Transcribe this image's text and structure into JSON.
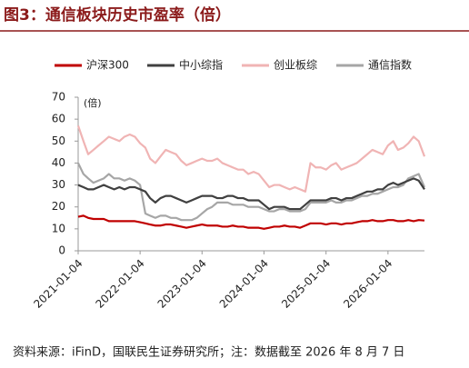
{
  "chart_data": {
    "type": "line",
    "title": "图3：通信板块历史市盈率（倍）",
    "ylabel": "(倍)",
    "source": "资料来源：iFinD，国联民生证券研究所；注：数据截至 2026 年 8 月 7 日",
    "x": [
      "2021-01-04",
      "2021-02-04",
      "2021-03-04",
      "2021-04-04",
      "2021-05-04",
      "2021-06-04",
      "2021-07-04",
      "2021-08-04",
      "2021-09-04",
      "2021-10-04",
      "2021-11-04",
      "2021-12-04",
      "2022-01-04",
      "2022-02-04",
      "2022-03-04",
      "2022-04-04",
      "2022-05-04",
      "2022-06-04",
      "2022-07-04",
      "2022-08-04",
      "2022-09-04",
      "2022-10-04",
      "2022-11-04",
      "2022-12-04",
      "2023-01-04",
      "2023-02-04",
      "2023-03-04",
      "2023-04-04",
      "2023-05-04",
      "2023-06-04",
      "2023-07-04",
      "2023-08-04",
      "2023-09-04",
      "2023-10-04",
      "2023-11-04",
      "2023-12-04",
      "2024-01-04",
      "2024-02-04",
      "2024-03-04",
      "2024-04-04",
      "2024-05-04",
      "2024-06-04",
      "2024-07-04",
      "2024-08-04",
      "2024-09-04",
      "2024-10-04",
      "2024-11-04",
      "2024-12-04",
      "2025-01-04",
      "2025-02-04",
      "2025-03-04",
      "2025-04-04",
      "2025-05-04",
      "2025-06-04",
      "2025-07-04",
      "2025-08-04",
      "2025-09-04",
      "2025-10-04",
      "2025-11-04",
      "2025-12-04",
      "2026-01-04",
      "2026-02-04",
      "2026-03-04",
      "2026-04-04",
      "2026-05-04",
      "2026-06-04",
      "2026-07-04",
      "2026-08-07"
    ],
    "xlim": [
      "2021-01-04",
      "2026-08-07"
    ],
    "xticks": [
      "2021-01-04",
      "2022-01-04",
      "2023-01-04",
      "2024-01-04",
      "2025-01-04",
      "2026-01-04"
    ],
    "ylim": [
      0,
      70
    ],
    "yticks": [
      0,
      10,
      20,
      30,
      40,
      50,
      60,
      70
    ],
    "legend": "top",
    "series": [
      {
        "name": "沪深300",
        "color": "#c00000",
        "values": [
          15.5,
          16,
          15,
          14.5,
          14.5,
          14.5,
          13.5,
          13.5,
          13.5,
          13.5,
          13.5,
          13.5,
          13,
          12.5,
          12,
          11.5,
          11.5,
          12,
          12,
          11.5,
          11,
          10.5,
          11,
          11.5,
          12,
          11.5,
          11.5,
          11.5,
          11,
          11,
          11.5,
          11,
          11,
          10.5,
          10.5,
          10.5,
          10,
          10.5,
          11,
          11,
          11.5,
          11,
          11,
          10.5,
          11.5,
          12.5,
          12.5,
          12.5,
          12,
          12.5,
          12.5,
          12,
          12.5,
          12.5,
          13,
          13.5,
          13.5,
          14,
          13.5,
          13.5,
          14,
          14,
          13.5,
          13.5,
          14,
          13.5,
          14,
          13.8
        ]
      },
      {
        "name": "中小综指",
        "color": "#404040",
        "values": [
          30,
          29,
          28,
          28,
          29,
          30,
          29,
          28,
          29,
          28,
          29,
          29,
          28,
          27,
          24,
          22,
          24,
          25,
          25,
          24,
          23,
          22,
          23,
          24,
          25,
          25,
          25,
          24,
          24,
          25,
          25,
          24,
          24,
          23,
          23,
          23,
          21,
          19,
          20,
          20,
          20,
          19,
          19,
          19,
          21,
          23,
          23,
          23,
          23,
          24,
          24,
          23,
          24,
          24,
          25,
          26,
          27,
          27,
          28,
          28,
          30,
          31,
          30,
          31,
          32,
          33,
          32,
          28
        ]
      },
      {
        "name": "创业板综",
        "color": "#f0b4b4",
        "values": [
          57,
          50,
          44,
          46,
          48,
          50,
          52,
          51,
          50,
          52,
          53,
          52,
          49,
          47,
          42,
          40,
          43,
          46,
          45,
          44,
          41,
          39,
          40,
          41,
          42,
          41,
          41,
          42,
          40,
          39,
          38,
          37,
          37,
          35,
          36,
          35,
          32,
          29,
          30,
          30,
          29,
          28,
          29,
          28,
          27,
          40,
          38,
          38,
          37,
          39,
          40,
          37,
          38,
          39,
          40,
          42,
          44,
          46,
          45,
          44,
          48,
          50,
          46,
          47,
          49,
          52,
          50,
          43
        ]
      },
      {
        "name": "通信指数",
        "color": "#a6a6a6",
        "values": [
          40,
          35,
          33,
          31,
          32,
          33,
          35,
          33,
          33,
          32,
          33,
          32,
          30,
          17,
          16,
          15,
          16,
          16,
          15,
          15,
          14,
          14,
          14,
          15,
          17,
          19,
          20,
          22,
          22,
          22,
          21,
          21,
          21,
          20,
          20,
          20,
          19,
          18,
          18,
          19,
          19,
          18,
          18,
          18,
          19,
          22,
          22,
          22,
          22,
          23,
          22,
          22,
          23,
          23,
          24,
          25,
          25,
          26,
          26,
          27,
          28,
          29,
          29,
          30,
          33,
          34,
          35,
          29
        ]
      }
    ]
  }
}
